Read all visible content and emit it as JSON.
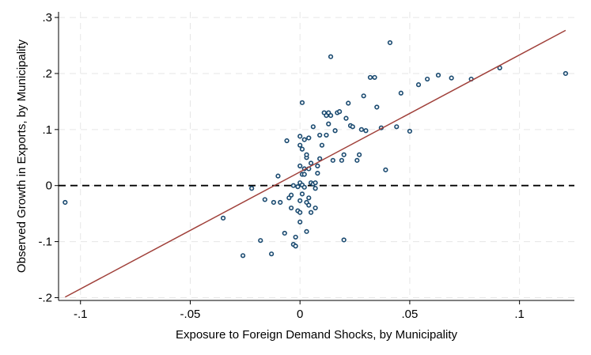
{
  "chart_data": {
    "type": "scatter",
    "xlabel": "Exposure to Foreign Demand Shocks, by Municipality",
    "ylabel": "Observed Growth in Exports, by Municipality",
    "xlim": [
      -0.11,
      0.125
    ],
    "ylim": [
      -0.205,
      0.31
    ],
    "x_ticks": [
      -0.1,
      -0.05,
      0,
      0.05,
      0.1
    ],
    "x_tick_labels": [
      "-.1",
      "-.05",
      "0",
      ".05",
      ".1"
    ],
    "y_ticks": [
      -0.2,
      -0.1,
      0,
      0.1,
      0.2,
      0.3
    ],
    "y_tick_labels": [
      "-.2",
      "-.1",
      "0",
      ".1",
      ".2",
      ".3"
    ],
    "grid": true,
    "reference_line": {
      "y": 0,
      "style": "dashed",
      "color": "#000000"
    },
    "fit_line": {
      "x": [
        -0.107,
        0.121
      ],
      "y": [
        -0.199,
        0.277
      ],
      "color": "#a0403a"
    },
    "points": [
      [
        -0.107,
        -0.03
      ],
      [
        -0.035,
        -0.058
      ],
      [
        -0.026,
        -0.125
      ],
      [
        -0.022,
        -0.005
      ],
      [
        -0.018,
        -0.098
      ],
      [
        -0.016,
        -0.025
      ],
      [
        -0.013,
        -0.122
      ],
      [
        -0.012,
        -0.03
      ],
      [
        -0.01,
        0.017
      ],
      [
        -0.009,
        -0.03
      ],
      [
        -0.007,
        -0.085
      ],
      [
        -0.006,
        0.08
      ],
      [
        -0.005,
        -0.022
      ],
      [
        -0.004,
        -0.04
      ],
      [
        -0.004,
        -0.017
      ],
      [
        -0.003,
        0.0
      ],
      [
        -0.003,
        -0.105
      ],
      [
        -0.002,
        -0.108
      ],
      [
        -0.002,
        -0.092
      ],
      [
        -0.001,
        -0.002
      ],
      [
        -0.001,
        -0.045
      ],
      [
        0.0,
        0.088
      ],
      [
        0.0,
        -0.027
      ],
      [
        0.0,
        0.005
      ],
      [
        0.0,
        -0.048
      ],
      [
        0.0,
        -0.065
      ],
      [
        0.0,
        0.035
      ],
      [
        0.0,
        0.072
      ],
      [
        0.001,
        0.148
      ],
      [
        0.001,
        0.065
      ],
      [
        0.001,
        0.001
      ],
      [
        0.001,
        0.02
      ],
      [
        0.001,
        -0.015
      ],
      [
        0.002,
        0.03
      ],
      [
        0.002,
        0.02
      ],
      [
        0.002,
        -0.003
      ],
      [
        0.002,
        0.082
      ],
      [
        0.003,
        0.05
      ],
      [
        0.003,
        0.055
      ],
      [
        0.003,
        -0.03
      ],
      [
        0.003,
        -0.082
      ],
      [
        0.004,
        0.085
      ],
      [
        0.004,
        0.03
      ],
      [
        0.004,
        -0.022
      ],
      [
        0.004,
        -0.035
      ],
      [
        0.005,
        0.04
      ],
      [
        0.005,
        -0.048
      ],
      [
        0.005,
        0.005
      ],
      [
        0.006,
        0.105
      ],
      [
        0.006,
        0.003
      ],
      [
        0.007,
        -0.005
      ],
      [
        0.007,
        -0.04
      ],
      [
        0.007,
        0.005
      ],
      [
        0.008,
        0.022
      ],
      [
        0.008,
        0.035
      ],
      [
        0.009,
        0.09
      ],
      [
        0.009,
        0.048
      ],
      [
        0.01,
        0.072
      ],
      [
        0.011,
        0.13
      ],
      [
        0.012,
        0.09
      ],
      [
        0.012,
        0.125
      ],
      [
        0.013,
        0.11
      ],
      [
        0.013,
        0.13
      ],
      [
        0.014,
        0.125
      ],
      [
        0.014,
        0.23
      ],
      [
        0.015,
        0.045
      ],
      [
        0.016,
        0.098
      ],
      [
        0.017,
        0.13
      ],
      [
        0.018,
        0.132
      ],
      [
        0.019,
        0.045
      ],
      [
        0.02,
        -0.097
      ],
      [
        0.02,
        0.055
      ],
      [
        0.021,
        0.12
      ],
      [
        0.022,
        0.147
      ],
      [
        0.023,
        0.107
      ],
      [
        0.024,
        0.105
      ],
      [
        0.026,
        0.045
      ],
      [
        0.027,
        0.055
      ],
      [
        0.028,
        0.1
      ],
      [
        0.029,
        0.16
      ],
      [
        0.03,
        0.098
      ],
      [
        0.032,
        0.193
      ],
      [
        0.034,
        0.193
      ],
      [
        0.035,
        0.14
      ],
      [
        0.037,
        0.103
      ],
      [
        0.039,
        0.028
      ],
      [
        0.041,
        0.255
      ],
      [
        0.044,
        0.105
      ],
      [
        0.046,
        0.165
      ],
      [
        0.05,
        0.097
      ],
      [
        0.054,
        0.18
      ],
      [
        0.058,
        0.19
      ],
      [
        0.063,
        0.197
      ],
      [
        0.069,
        0.192
      ],
      [
        0.078,
        0.19
      ],
      [
        0.091,
        0.21
      ],
      [
        0.121,
        0.2
      ]
    ]
  }
}
